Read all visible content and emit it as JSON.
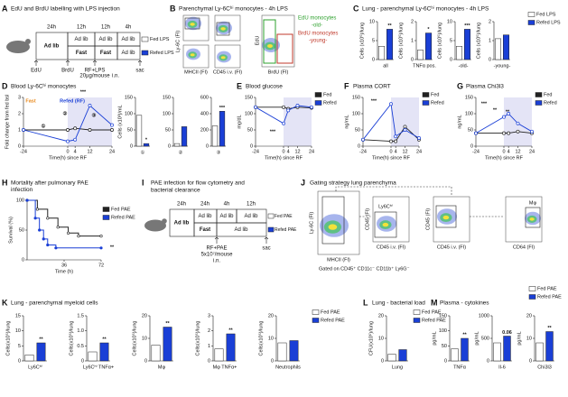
{
  "diagrams": {
    "A": {
      "panel": "A",
      "title": "EdU and BrdU labelling with LPS injection",
      "periods": [
        "24h",
        "12h",
        "12h",
        "4h"
      ],
      "feeding": [
        "Ad lib",
        "Ad lib",
        "Ad lib",
        "Ad lib",
        "Fast",
        "Fast",
        "Ad lib"
      ],
      "events": [
        "EdU",
        "BrdU",
        "RF+LPS",
        "20µg/mouse",
        "i.n.",
        "sac"
      ],
      "legend": [
        "Fed LPS",
        "Refed LPS"
      ]
    },
    "B": {
      "panel": "B",
      "title": "Parenchymal Ly-6Cʰⁱ monocytes - 4h LPS",
      "axes": [
        "Ly-6C (FI)",
        "MHCII (FI)",
        "CD45 i.v. (FI)",
        "EdU",
        "BrdU (FI)"
      ],
      "gates": [
        "EdU monocytes",
        "-old-",
        "BrdU monocytes",
        "-young-"
      ]
    },
    "I": {
      "panel": "I",
      "title": [
        "PAE infection for flow cytometry and",
        "bacterial clearance"
      ],
      "periods": [
        "24h",
        "24h",
        "4h",
        "12h"
      ],
      "feeding": [
        "Ad lib",
        "Ad lib",
        "Ad lib",
        "Ad lib",
        "Fast",
        "Ad lib"
      ],
      "events": [
        "RF+PAE",
        "5x10⁷/mouse",
        "i.n.",
        "sac"
      ],
      "legend": [
        "Fed PAE",
        "Refed PAE"
      ]
    },
    "J": {
      "panel": "J",
      "title": "Gating strategy lung parenchyma",
      "axes": [
        "Ly-6C (FI)",
        "MHCII (FI)",
        "CD45 (FI)",
        "CD45 i.v. (FI)",
        "CD45 (FI)",
        "CD45 i.v. (FI)",
        "CD64 (FI)"
      ],
      "gates": [
        "Ly6Cʰⁱ",
        "Mφ"
      ],
      "note": "Gated on CD45⁺ CD11c⁻ CD11b⁺ Ly6G⁻"
    }
  },
  "chart_data": [
    {
      "type": "bar",
      "panel": "C",
      "title": "Lung - parenchymal Ly-6Cʰⁱ monocytes - 4h LPS",
      "series": [
        {
          "name": "Fed LPS",
          "color": "#ffffff"
        },
        {
          "name": "Refed LPS",
          "color": "#1a3fd6"
        }
      ],
      "plots": [
        {
          "ylabel": "Cells (x10⁵)/lung",
          "category": "all",
          "ylim": [
            0,
            10
          ],
          "yticks": [
            0,
            5,
            10
          ],
          "values": [
            3.5,
            8
          ],
          "annotation": "**"
        },
        {
          "ylabel": "Cells (x10⁵)/lung",
          "category": "TNFα pos.",
          "ylim": [
            0,
            2
          ],
          "yticks": [
            0,
            1,
            2
          ],
          "values": [
            0.5,
            1.4
          ],
          "annotation": "*"
        },
        {
          "ylabel": "Cells (x10⁵)/lung",
          "category": "-old-",
          "ylim": [
            0,
            10
          ],
          "yticks": [
            0,
            5,
            10
          ],
          "values": [
            3.5,
            8
          ],
          "annotation": "***"
        },
        {
          "ylabel": "Cells (x10⁵)/lung",
          "category": "-young-",
          "ylim": [
            0,
            2
          ],
          "yticks": [
            0,
            1,
            2
          ],
          "values": [
            1.1,
            1.3
          ]
        }
      ]
    },
    {
      "type": "line",
      "panel": "D",
      "title": "Blood Ly-6Cʰⁱ monocytes",
      "ylabel": "Fold change from fed bsl",
      "xlabel": "Time(h) since RF",
      "x": [
        -24,
        0,
        4,
        12,
        24
      ],
      "xlim": [
        -24,
        24
      ],
      "xticks": [
        -24,
        0,
        4,
        12,
        24
      ],
      "ylim": [
        0,
        3
      ],
      "yticks": [
        0,
        1,
        2,
        3
      ],
      "series": [
        {
          "color": "#222222",
          "values": [
            1,
            1,
            1.1,
            1,
            1
          ]
        },
        {
          "color": "#1a3fd6",
          "values": [
            1,
            0.3,
            0.4,
            2.5,
            1.3
          ]
        }
      ],
      "annotations": [
        "Fast",
        "Refed (RF)",
        "①",
        "②",
        "③",
        "***"
      ]
    },
    {
      "type": "bar",
      "series": [
        {
          "color": "#ffffff"
        },
        {
          "color": "#1a3fd6"
        }
      ],
      "plots": [
        {
          "ylabel": "Cells (x10³)/mL",
          "category": "①",
          "ylim": [
            0,
            150
          ],
          "yticks": [
            0,
            50,
            100,
            150
          ],
          "values": [
            95,
            8
          ],
          "annotation": "*"
        },
        {
          "category": "②",
          "ylim": [
            0,
            150
          ],
          "yticks": [
            0,
            50,
            100,
            150
          ],
          "values": [
            8,
            60
          ]
        },
        {
          "category": "③",
          "ylim": [
            0,
            600
          ],
          "yticks": [
            0,
            200,
            400,
            600
          ],
          "values": [
            250,
            430
          ],
          "annotation": "***"
        }
      ]
    },
    {
      "type": "line",
      "panel": "E",
      "title": "Blood glucose",
      "ylabel": "mg/dL",
      "xlabel": "Time(h) since RF",
      "x": [
        -24,
        0,
        4,
        12,
        24
      ],
      "xlim": [
        -24,
        24
      ],
      "xticks": [
        -24,
        0,
        4,
        12,
        24
      ],
      "ylim": [
        0,
        150
      ],
      "yticks": [
        0,
        50,
        100,
        150
      ],
      "series": [
        {
          "name": "Fed",
          "color": "#222222",
          "values": [
            120,
            120,
            115,
            120,
            118
          ]
        },
        {
          "name": "Refed",
          "color": "#1a3fd6",
          "values": [
            120,
            70,
            110,
            125,
            120
          ]
        }
      ],
      "annotations": [
        "***"
      ]
    },
    {
      "type": "line",
      "panel": "F",
      "title": "Plasma CORT",
      "ylabel": "ng/mL",
      "xlabel": "Time(h) since RF",
      "x": [
        -24,
        0,
        4,
        12,
        24
      ],
      "xlim": [
        -24,
        24
      ],
      "xticks": [
        -24,
        0,
        4,
        12,
        24
      ],
      "ylim": [
        0,
        150
      ],
      "yticks": [
        0,
        50,
        100,
        150
      ],
      "series": [
        {
          "name": "Fed",
          "color": "#222222",
          "values": [
            20,
            15,
            15,
            60,
            20
          ]
        },
        {
          "name": "Refed",
          "color": "#1a3fd6",
          "values": [
            20,
            130,
            30,
            50,
            25
          ]
        }
      ],
      "annotations": [
        "***"
      ]
    },
    {
      "type": "line",
      "panel": "G",
      "title": "Plasma Chi3l3",
      "ylabel": "ng/mL",
      "xlabel": "Time(h) since RF",
      "x": [
        -24,
        0,
        4,
        12,
        24
      ],
      "xlim": [
        -24,
        24
      ],
      "xticks": [
        -24,
        0,
        4,
        12,
        24
      ],
      "ylim": [
        0,
        150
      ],
      "yticks": [
        0,
        50,
        100,
        150
      ],
      "series": [
        {
          "name": "Fed",
          "color": "#222222",
          "values": [
            40,
            40,
            40,
            45,
            40
          ]
        },
        {
          "name": "Refed",
          "color": "#1a3fd6",
          "values": [
            40,
            90,
            100,
            70,
            45
          ]
        }
      ],
      "annotations": [
        "***",
        "**",
        "**"
      ]
    },
    {
      "type": "step",
      "panel": "H",
      "title": [
        "Mortality after pulmonary PAE",
        "infection"
      ],
      "ylabel": "Survival (%)",
      "xlabel": "Time (h)",
      "xlim": [
        0,
        72
      ],
      "xticks": [
        36,
        72
      ],
      "ylim": [
        0,
        100
      ],
      "yticks": [
        0,
        50,
        100
      ],
      "series": [
        {
          "name": "Fed PAE",
          "color": "#222222",
          "x": [
            0,
            10,
            20,
            30,
            40,
            50,
            72
          ],
          "values": [
            100,
            85,
            70,
            55,
            45,
            40,
            40
          ]
        },
        {
          "name": "Refed PAE",
          "color": "#1a3fd6",
          "x": [
            0,
            8,
            12,
            16,
            20,
            28,
            72
          ],
          "values": [
            100,
            70,
            50,
            35,
            25,
            20,
            20
          ]
        }
      ],
      "annotations": [
        "**"
      ]
    },
    {
      "type": "bar",
      "panel": "K",
      "title": "Lung - parenchymal myeloid cells",
      "series": [
        {
          "name": "Fed PAE",
          "color": "#ffffff"
        },
        {
          "name": "Refed PAE",
          "color": "#1a3fd6"
        }
      ],
      "plots": [
        {
          "ylabel": "Cells(x10⁵)/lung",
          "category": "Ly6Cʰⁱ",
          "ylim": [
            0,
            15
          ],
          "yticks": [
            0,
            5,
            10,
            15
          ],
          "values": [
            2,
            6
          ],
          "annotation": "**"
        },
        {
          "ylabel": "Cells(x10⁵)/lung",
          "category": "Ly6Cʰⁱ TNFα+",
          "ylim": [
            0,
            1.5
          ],
          "yticks": [
            0,
            0.5,
            {
              "value": 1,
              "label": "1.0"
            },
            1.5
          ],
          "values": [
            0.3,
            0.6
          ],
          "annotation": "**"
        },
        {
          "ylabel": "Cells(x10⁵)/lung",
          "category": "Mφ",
          "ylim": [
            0,
            20
          ],
          "yticks": [
            0,
            10,
            20
          ],
          "values": [
            7,
            15
          ],
          "annotation": "**"
        },
        {
          "ylabel": "Cells(x10⁵)/lung",
          "category": "Mφ TNFα+",
          "ylim": [
            0,
            3
          ],
          "yticks": [
            0,
            1,
            2,
            3
          ],
          "values": [
            0.8,
            1.8
          ],
          "annotation": "**"
        },
        {
          "ylabel": "Cells(x10⁵)/lung",
          "category": "Neutrophils",
          "ylim": [
            0,
            20
          ],
          "yticks": [
            0,
            10,
            20
          ],
          "values": [
            8,
            9
          ]
        }
      ]
    },
    {
      "type": "bar",
      "panel": "L",
      "title": "Lung - bacterial load",
      "series": [
        {
          "name": "Fed PAE",
          "color": "#ffffff"
        },
        {
          "name": "Refed PAE",
          "color": "#1a3fd6"
        }
      ],
      "plots": [
        {
          "ylabel": "CFU(x10⁵)/lung",
          "category": "Lung",
          "ylim": [
            0,
            20
          ],
          "yticks": [
            0,
            10,
            20
          ],
          "values": [
            3,
            5
          ]
        }
      ]
    },
    {
      "type": "bar",
      "panel": "M",
      "title": "Plasma - cytokines",
      "series": [
        {
          "name": "Fed PAE",
          "color": "#ffffff"
        },
        {
          "name": "Refed PAE",
          "color": "#1a3fd6"
        }
      ],
      "plots": [
        {
          "ylabel": "pg/mL",
          "category": "TNFα",
          "ylim": [
            0,
            150
          ],
          "yticks": [
            0,
            50,
            100,
            150
          ],
          "values": [
            40,
            75
          ],
          "annotation": "**"
        },
        {
          "ylabel": "pg/mL",
          "category": "Il-6",
          "ylim": [
            0,
            1000
          ],
          "yticks": [
            0,
            500,
            1000
          ],
          "values": [
            400,
            550
          ],
          "annotation": "0.06"
        },
        {
          "ylabel": "pg/mL",
          "category": "Chi3l3",
          "ylim": [
            0,
            20
          ],
          "yticks": [
            0,
            10,
            20
          ],
          "values": [
            8,
            13
          ],
          "annotation": "**"
        }
      ]
    }
  ]
}
